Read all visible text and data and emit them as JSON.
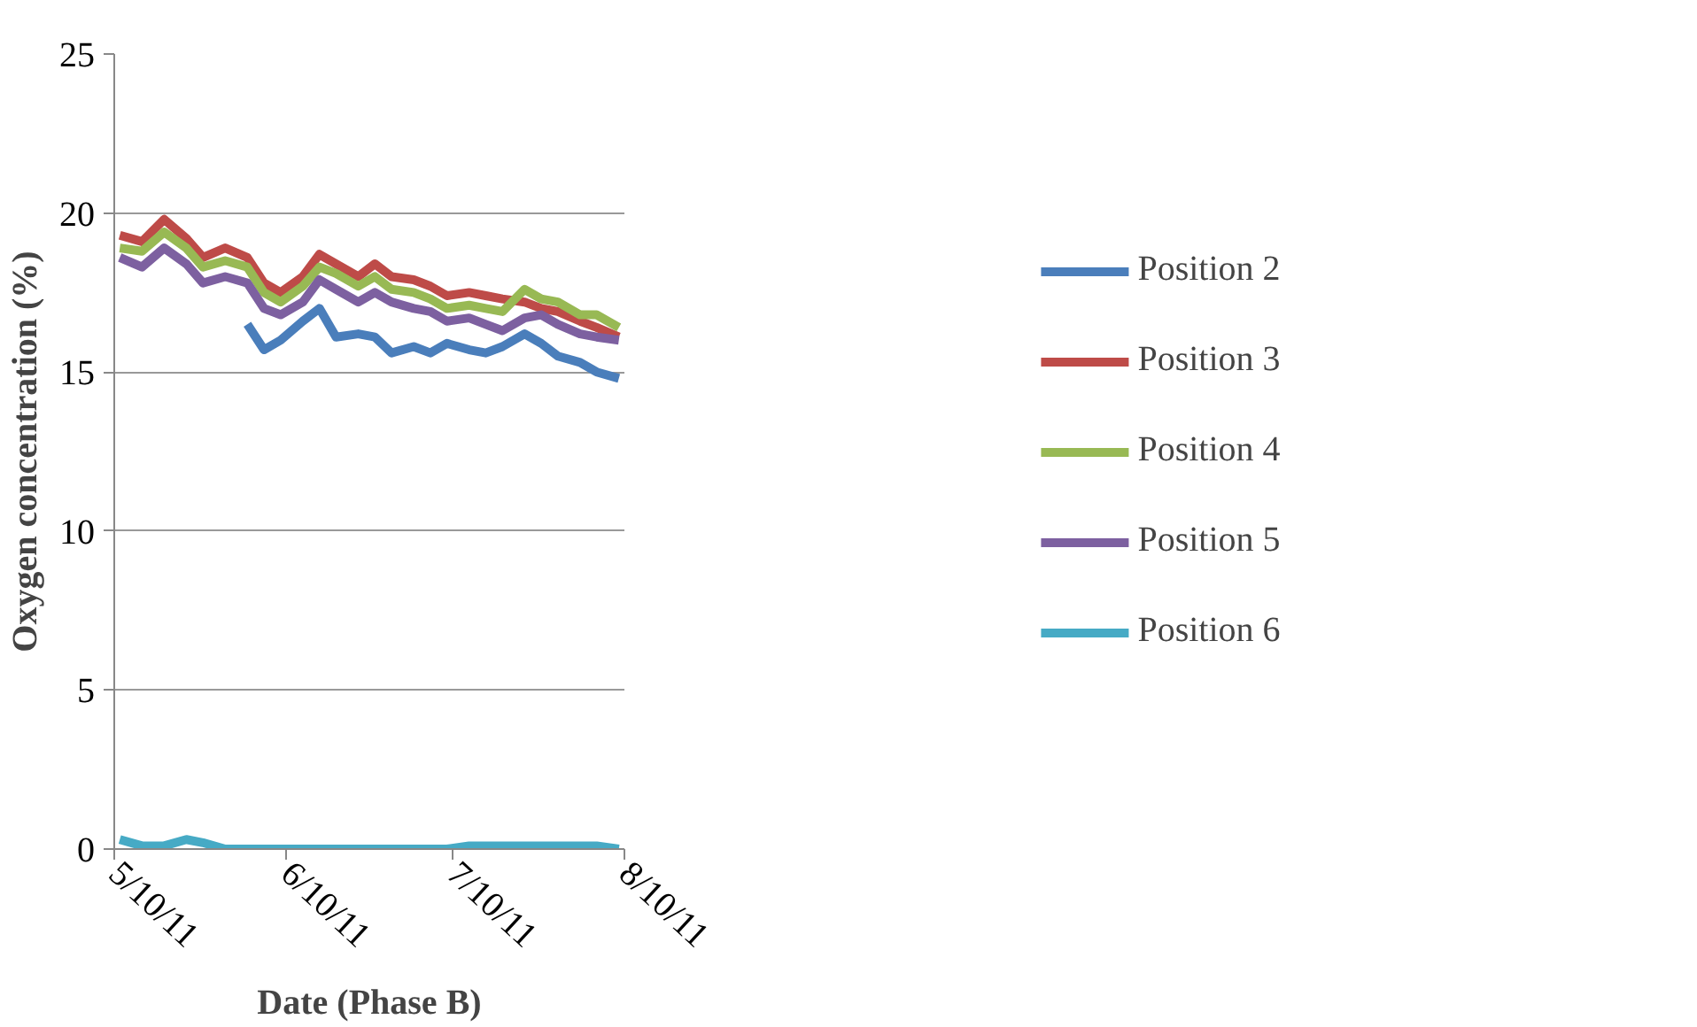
{
  "chart_data": {
    "type": "line",
    "xlabel": "Date (Phase B)",
    "ylabel": "Oxygen concentration (%)",
    "x": [
      "2011-05-11",
      "2011-05-15",
      "2011-05-19",
      "2011-05-23",
      "2011-05-26",
      "2011-05-30",
      "2011-06-03",
      "2011-06-06",
      "2011-06-09",
      "2011-06-13",
      "2011-06-16",
      "2011-06-19",
      "2011-06-23",
      "2011-06-26",
      "2011-06-29",
      "2011-07-03",
      "2011-07-06",
      "2011-07-09",
      "2011-07-13",
      "2011-07-16",
      "2011-07-19",
      "2011-07-23",
      "2011-07-26",
      "2011-07-29",
      "2011-08-02",
      "2011-08-05",
      "2011-08-09"
    ],
    "series": [
      {
        "name": "Position 2",
        "color": "#4a7ebb",
        "values": [
          null,
          null,
          null,
          null,
          null,
          null,
          16.5,
          15.7,
          16.0,
          16.6,
          17.0,
          16.1,
          16.2,
          16.1,
          15.6,
          15.8,
          15.6,
          15.9,
          15.7,
          15.6,
          15.8,
          16.2,
          15.9,
          15.5,
          15.3,
          15.0,
          14.8
        ]
      },
      {
        "name": "Position 3",
        "color": "#be4b48",
        "values": [
          19.3,
          19.1,
          19.8,
          19.2,
          18.6,
          18.9,
          18.6,
          17.8,
          17.5,
          18.0,
          18.7,
          18.4,
          18.0,
          18.4,
          18.0,
          17.9,
          17.7,
          17.4,
          17.5,
          17.4,
          17.3,
          17.2,
          17.0,
          16.9,
          16.6,
          16.4,
          16.1
        ]
      },
      {
        "name": "Position 4",
        "color": "#98b954",
        "values": [
          18.9,
          18.8,
          19.4,
          18.9,
          18.3,
          18.5,
          18.3,
          17.5,
          17.2,
          17.7,
          18.3,
          18.1,
          17.7,
          18.0,
          17.6,
          17.5,
          17.3,
          17.0,
          17.1,
          17.0,
          16.9,
          17.6,
          17.3,
          17.2,
          16.8,
          16.8,
          16.4
        ]
      },
      {
        "name": "Position 5",
        "color": "#7d60a0",
        "values": [
          18.6,
          18.3,
          18.9,
          18.4,
          17.8,
          18.0,
          17.8,
          17.0,
          16.8,
          17.2,
          17.9,
          17.6,
          17.2,
          17.5,
          17.2,
          17.0,
          16.9,
          16.6,
          16.7,
          16.5,
          16.3,
          16.7,
          16.8,
          16.5,
          16.2,
          16.1,
          16.0
        ]
      },
      {
        "name": "Position 6",
        "color": "#46aac5",
        "values": [
          0.3,
          0.1,
          0.1,
          0.3,
          0.2,
          0,
          0,
          0,
          0,
          0,
          0,
          0,
          0,
          0,
          0,
          0,
          0,
          0,
          0.1,
          0.1,
          0.1,
          0.1,
          0.1,
          0.1,
          0.1,
          0.1,
          0
        ]
      }
    ],
    "xlim": [
      "2011-05-10",
      "2011-08-10"
    ],
    "xticks": [
      {
        "value": "2011-05-10",
        "label": "5/10/11"
      },
      {
        "value": "2011-06-10",
        "label": "6/10/11"
      },
      {
        "value": "2011-07-10",
        "label": "7/10/11"
      },
      {
        "value": "2011-08-10",
        "label": "8/10/11"
      }
    ],
    "ylim": [
      0,
      25
    ],
    "yticks": [
      0,
      5,
      10,
      15,
      20,
      25
    ],
    "grid": "y",
    "legend": "right",
    "marker": "none",
    "line_style": "solid"
  }
}
